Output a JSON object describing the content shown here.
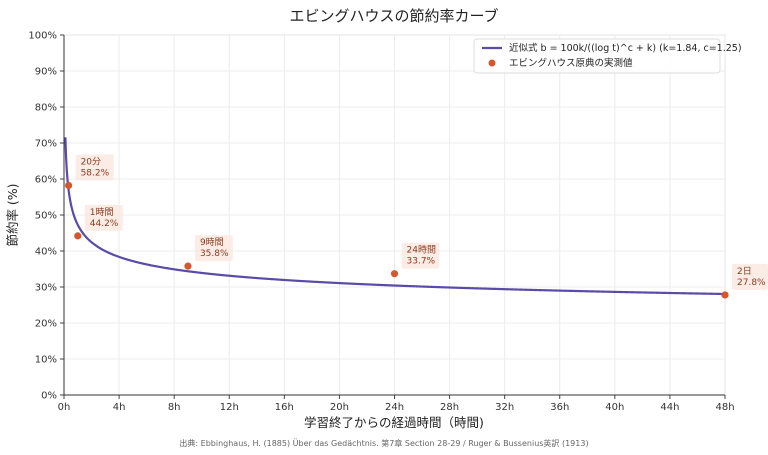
{
  "chart_data": {
    "type": "line",
    "title": "エビングハウスの節約率カーブ",
    "xlabel": "学習終了からの経過時間（時間)",
    "ylabel": "節約率 (%)",
    "xlim": [
      0,
      48
    ],
    "ylim": [
      0,
      100
    ],
    "x_ticks": [
      0,
      4,
      8,
      12,
      16,
      20,
      24,
      28,
      32,
      36,
      40,
      44,
      48
    ],
    "x_tick_labels": [
      "0h",
      "4h",
      "8h",
      "12h",
      "16h",
      "20h",
      "24h",
      "28h",
      "32h",
      "36h",
      "40h",
      "44h",
      "48h"
    ],
    "y_ticks": [
      0,
      10,
      20,
      30,
      40,
      50,
      60,
      70,
      80,
      90,
      100
    ],
    "y_tick_labels": [
      "0%",
      "10%",
      "20%",
      "30%",
      "40%",
      "50%",
      "60%",
      "70%",
      "80%",
      "90%",
      "100%"
    ],
    "grid": true,
    "legend_position": "top-right",
    "series": [
      {
        "name": "近似式 b = 100k/((log t)^c + k)  (k=1.84, c=1.25)",
        "kind": "line",
        "color": "#5b4aa8",
        "formula": {
          "k": 1.84,
          "c": 1.25,
          "t_unit": "minutes"
        }
      },
      {
        "name": "エビングハウス原典の実測値",
        "kind": "scatter",
        "color": "#d4582f",
        "points": [
          {
            "x": 0.333,
            "y": 58.2,
            "label_time": "20分",
            "label_value": "58.2%"
          },
          {
            "x": 1,
            "y": 44.2,
            "label_time": "1時間",
            "label_value": "44.2%"
          },
          {
            "x": 9,
            "y": 35.8,
            "label_time": "9時間",
            "label_value": "35.8%"
          },
          {
            "x": 24,
            "y": 33.7,
            "label_time": "24時間",
            "label_value": "33.7%"
          },
          {
            "x": 48,
            "y": 27.8,
            "label_time": "2日",
            "label_value": "27.8%"
          }
        ]
      }
    ],
    "source_note": "出典: Ebbinghaus, H. (1885) Über das Gedächtnis. 第7章 Section 28-29 / Ruger & Bussenius英訳 (1913)"
  }
}
